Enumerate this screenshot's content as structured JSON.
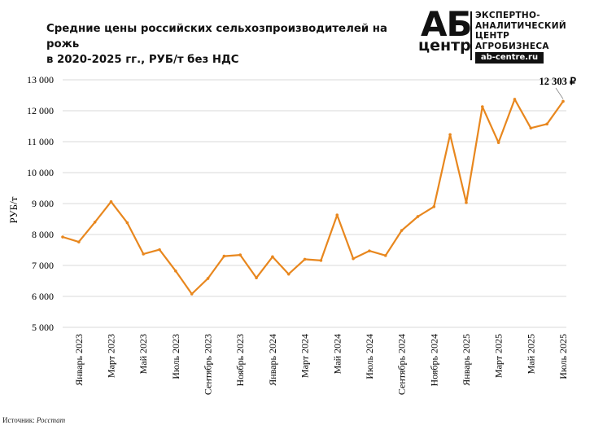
{
  "header": {
    "title_line1": "Средние цены российских сельхозпроизводителей на рожь",
    "title_line2": "в 2020-2025 гг., РУБ/т без НДС"
  },
  "logo": {
    "mark": "АБ",
    "mark_sub": "центр",
    "text_lines": [
      "ЭКСПЕРТНО-",
      "АНАЛИТИЧЕСКИЙ",
      "ЦЕНТР",
      "АГРОБИЗНЕСА"
    ],
    "url": "ab-centre.ru"
  },
  "footer": {
    "source_label": "Источник:",
    "source_value": "Росстат"
  },
  "colors": {
    "line": "#E8871E",
    "grid": "#d9d9d9"
  },
  "chart_data": {
    "type": "line",
    "title": "Средние цены российских сельхозпроизводителей на рожь в 2020-2025 гг., РУБ/т без НДС",
    "ylabel": "РУБ/т",
    "xlabel": "",
    "ylim": [
      5000,
      13000
    ],
    "yticks": [
      5000,
      6000,
      7000,
      8000,
      9000,
      10000,
      11000,
      12000,
      13000
    ],
    "ytick_labels": [
      "5 000",
      "6 000",
      "7 000",
      "8 000",
      "9 000",
      "10 000",
      "11 000",
      "12 000",
      "13 000"
    ],
    "grid": true,
    "x": [
      "Декабрь 2022",
      "Январь 2023",
      "Февраль 2023",
      "Март 2023",
      "Апрель 2023",
      "Май 2023",
      "Июнь 2023",
      "Июль 2023",
      "Август 2023",
      "Сентябрь 2023",
      "Октябрь 2023",
      "Ноябрь 2023",
      "Декабрь 2023",
      "Январь 2024",
      "Февраль 2024",
      "Март 2024",
      "Апрель 2024",
      "Май 2024",
      "Июнь 2024",
      "Июль 2024",
      "Август 2024",
      "Сентябрь 2024",
      "Октябрь 2024",
      "Ноябрь 2024",
      "Декабрь 2024",
      "Январь 2025",
      "Февраль 2025",
      "Март 2025",
      "Апрель 2025",
      "Май 2025",
      "Июнь 2025",
      "Июль 2025"
    ],
    "xtick_labels": [
      {
        "index": 1,
        "label": "Январь 2023"
      },
      {
        "index": 3,
        "label": "Март 2023"
      },
      {
        "index": 5,
        "label": "Май 2023"
      },
      {
        "index": 7,
        "label": "Июль 2023"
      },
      {
        "index": 9,
        "label": "Сентябрь 2023"
      },
      {
        "index": 11,
        "label": "Ноябрь 2023"
      },
      {
        "index": 13,
        "label": "Январь 2024"
      },
      {
        "index": 15,
        "label": "Март 2024"
      },
      {
        "index": 17,
        "label": "Май 2024"
      },
      {
        "index": 19,
        "label": "Июль 2024"
      },
      {
        "index": 21,
        "label": "Сентябрь 2024"
      },
      {
        "index": 23,
        "label": "Ноябрь 2024"
      },
      {
        "index": 25,
        "label": "Январь 2025"
      },
      {
        "index": 27,
        "label": "Март 2025"
      },
      {
        "index": 29,
        "label": "Май 2025"
      },
      {
        "index": 31,
        "label": "Июль 2025"
      }
    ],
    "series": [
      {
        "values": [
          7920,
          7760,
          8400,
          9060,
          8380,
          7370,
          7510,
          6820,
          6080,
          6580,
          7300,
          7340,
          6600,
          7280,
          6720,
          7200,
          7160,
          8630,
          7220,
          7470,
          7320,
          8130,
          8580,
          8900,
          11230,
          9030,
          12130,
          10970,
          12370,
          11440,
          11570,
          12303
        ]
      }
    ],
    "annotations": [
      {
        "index": 31,
        "text": "12 303 ₽"
      }
    ]
  }
}
